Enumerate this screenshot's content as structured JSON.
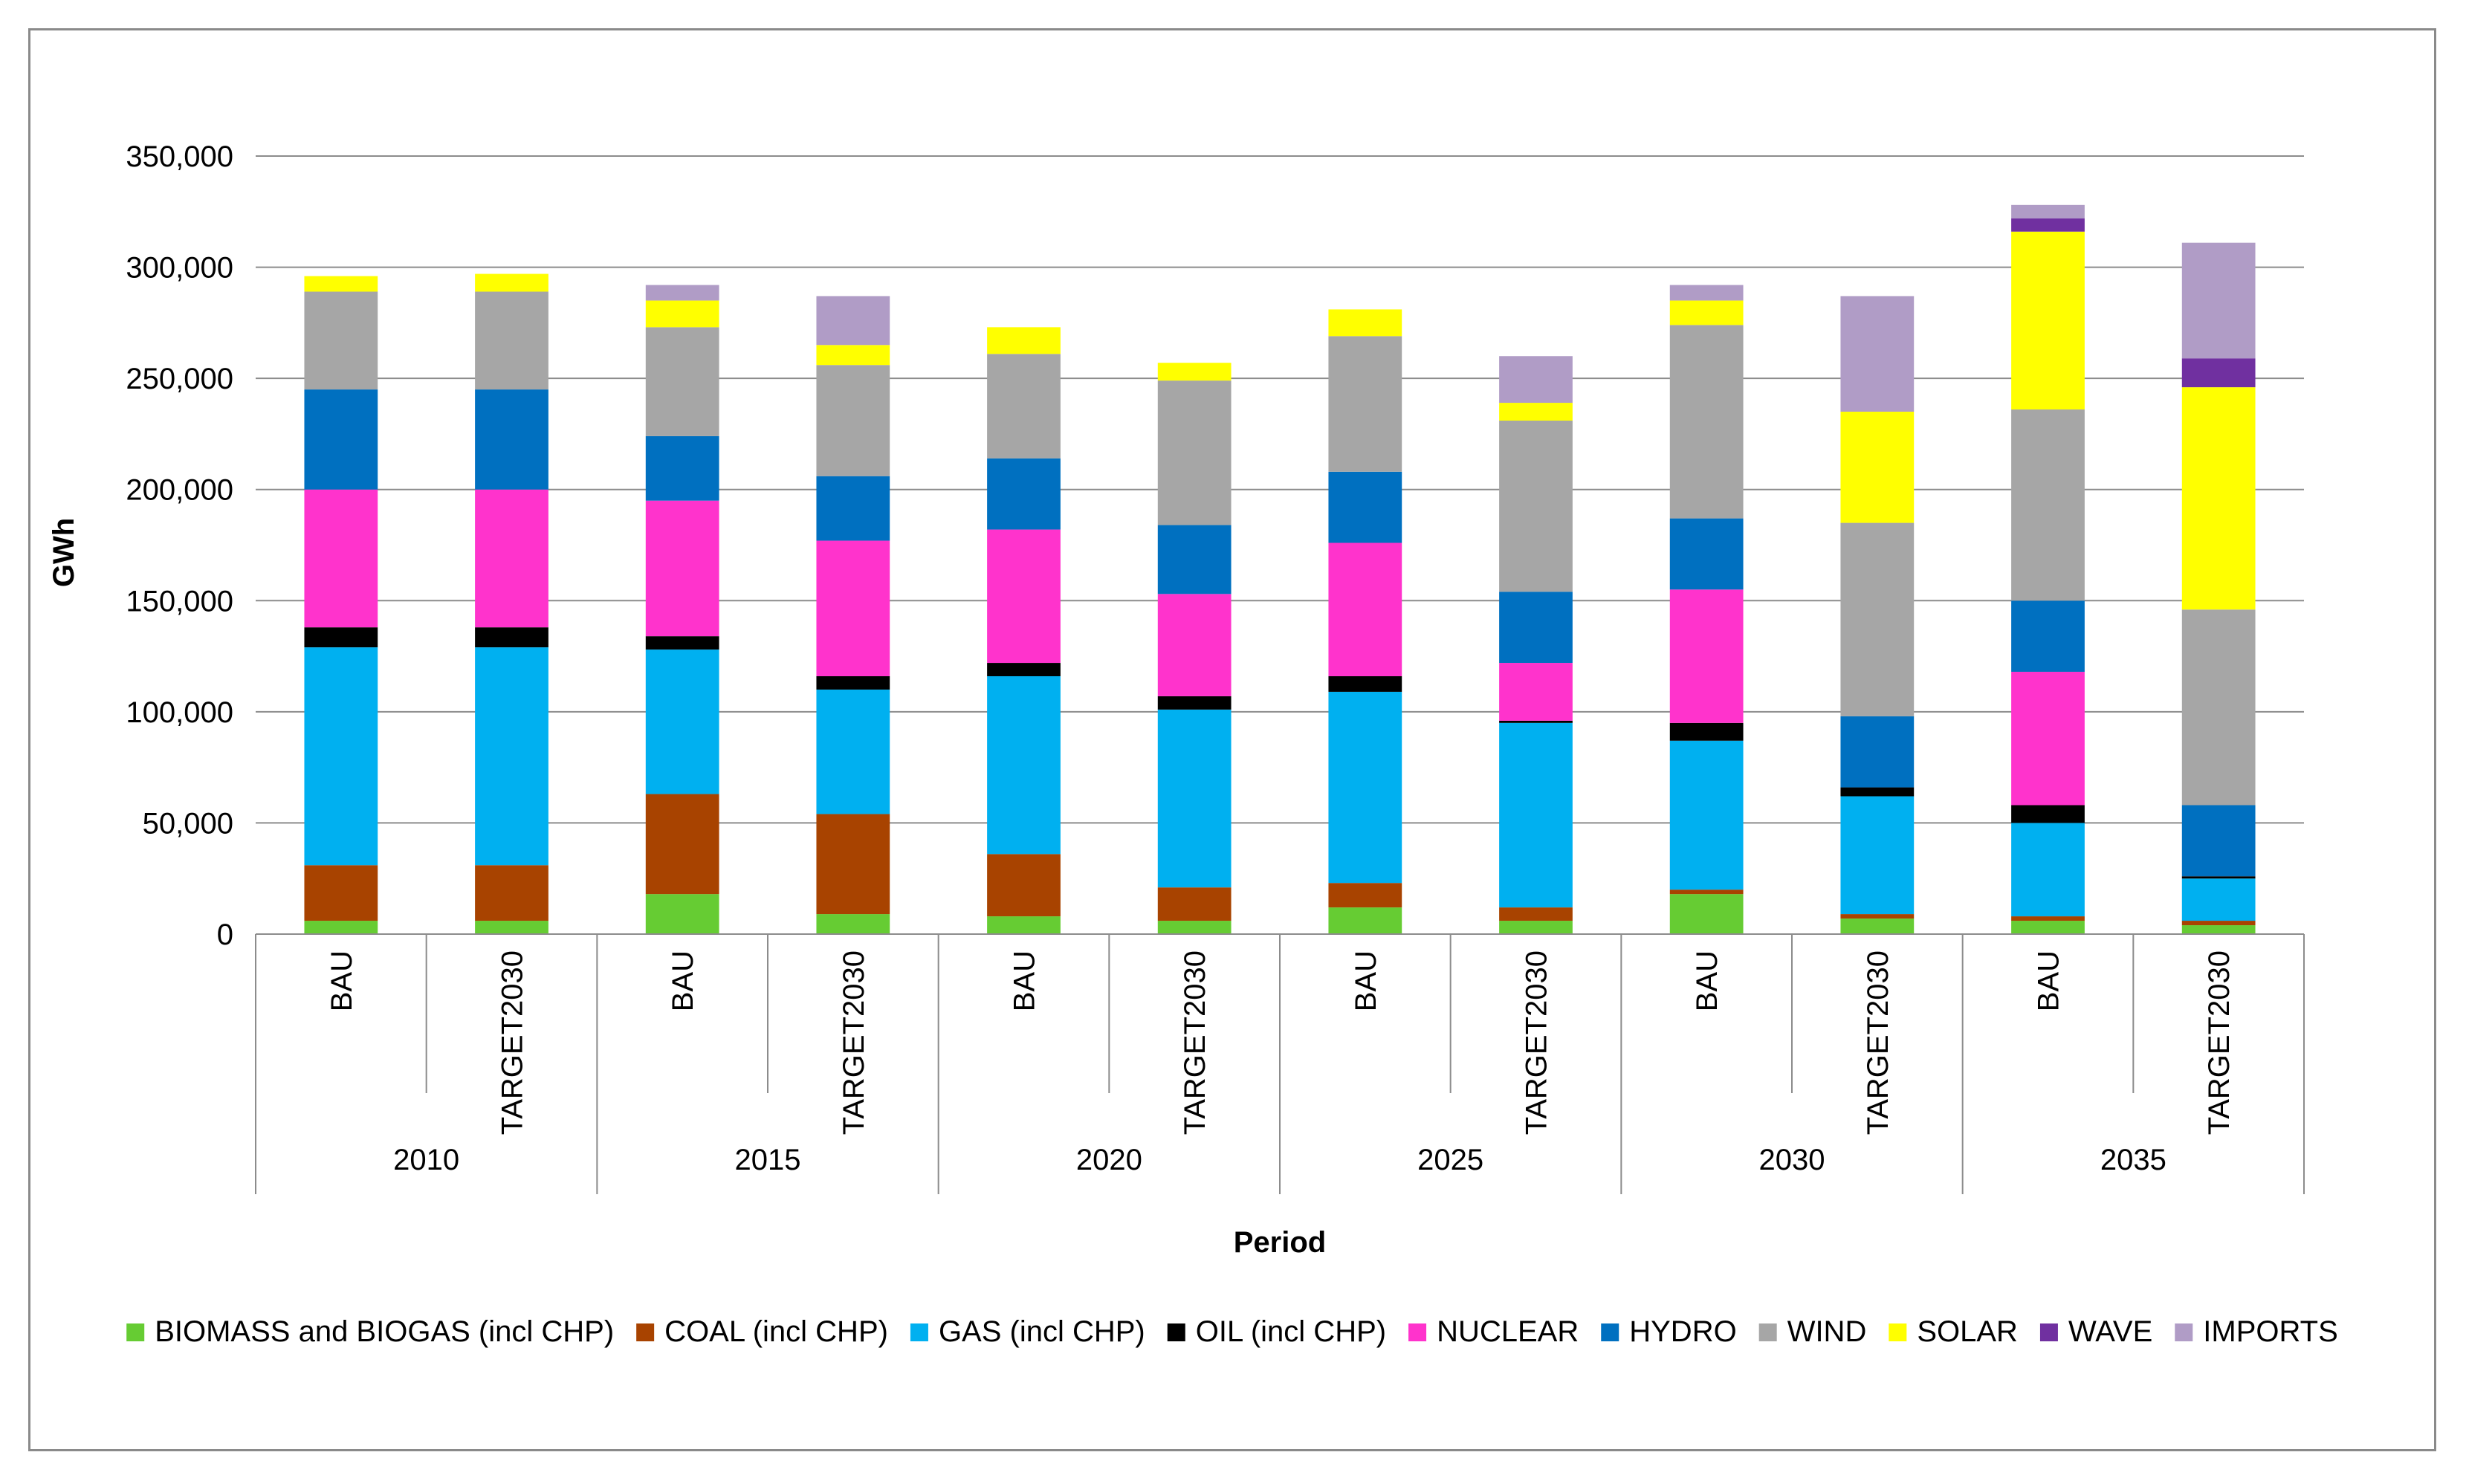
{
  "chart_data": {
    "type": "bar",
    "stacked": true,
    "title": "",
    "xlabel": "Period",
    "ylabel": "GWh",
    "ylim": [
      0,
      350000
    ],
    "yticks": [
      0,
      50000,
      100000,
      150000,
      200000,
      250000,
      300000,
      350000
    ],
    "ytick_labels": [
      "0",
      "50,000",
      "100,000",
      "150,000",
      "200,000",
      "250,000",
      "300,000",
      "350,000"
    ],
    "grid": true,
    "legend_position": "bottom",
    "groups": [
      "2010",
      "2015",
      "2020",
      "2025",
      "2030",
      "2035"
    ],
    "scenarios": [
      "BAU",
      "TARGET2030"
    ],
    "categories": [
      "BAU",
      "TARGET2030",
      "BAU",
      "TARGET2030",
      "BAU",
      "TARGET2030",
      "BAU",
      "TARGET2030",
      "BAU",
      "TARGET2030",
      "BAU",
      "TARGET2030"
    ],
    "series": [
      {
        "name": "BIOMASS and BIOGAS (incl CHP)",
        "color": "#66CC33",
        "values": [
          6000,
          6000,
          18000,
          9000,
          8000,
          6000,
          12000,
          6000,
          18000,
          7000,
          6000,
          4000
        ]
      },
      {
        "name": "COAL (incl CHP)",
        "color": "#A84300",
        "values": [
          25000,
          25000,
          45000,
          45000,
          28000,
          15000,
          11000,
          6000,
          2000,
          2000,
          2000,
          2000
        ]
      },
      {
        "name": "GAS (incl CHP)",
        "color": "#00B0F0",
        "values": [
          98000,
          98000,
          65000,
          56000,
          80000,
          80000,
          86000,
          83000,
          67000,
          53000,
          42000,
          19000
        ]
      },
      {
        "name": "OIL (incl CHP)",
        "color": "#000000",
        "values": [
          9000,
          9000,
          6000,
          6000,
          6000,
          6000,
          7000,
          1000,
          8000,
          4000,
          8000,
          1000
        ]
      },
      {
        "name": "NUCLEAR",
        "color": "#FF33CC",
        "values": [
          62000,
          62000,
          61000,
          61000,
          60000,
          46000,
          60000,
          26000,
          60000,
          0,
          60000,
          0
        ]
      },
      {
        "name": "HYDRO",
        "color": "#0070C0",
        "values": [
          45000,
          45000,
          29000,
          29000,
          32000,
          31000,
          32000,
          32000,
          32000,
          32000,
          32000,
          32000
        ]
      },
      {
        "name": "WIND",
        "color": "#A6A6A6",
        "values": [
          44000,
          44000,
          49000,
          50000,
          47000,
          65000,
          61000,
          77000,
          87000,
          87000,
          86000,
          88000
        ]
      },
      {
        "name": "SOLAR",
        "color": "#FFFF00",
        "values": [
          7000,
          8000,
          12000,
          9000,
          12000,
          8000,
          12000,
          8000,
          11000,
          50000,
          80000,
          100000
        ]
      },
      {
        "name": "WAVE",
        "color": "#7030A0",
        "values": [
          0,
          0,
          0,
          0,
          0,
          0,
          0,
          0,
          0,
          0,
          6000,
          13000
        ]
      },
      {
        "name": "IMPORTS",
        "color": "#B09CC6",
        "values": [
          0,
          0,
          7000,
          22000,
          0,
          0,
          0,
          21000,
          7000,
          52000,
          6000,
          52000
        ]
      }
    ]
  }
}
